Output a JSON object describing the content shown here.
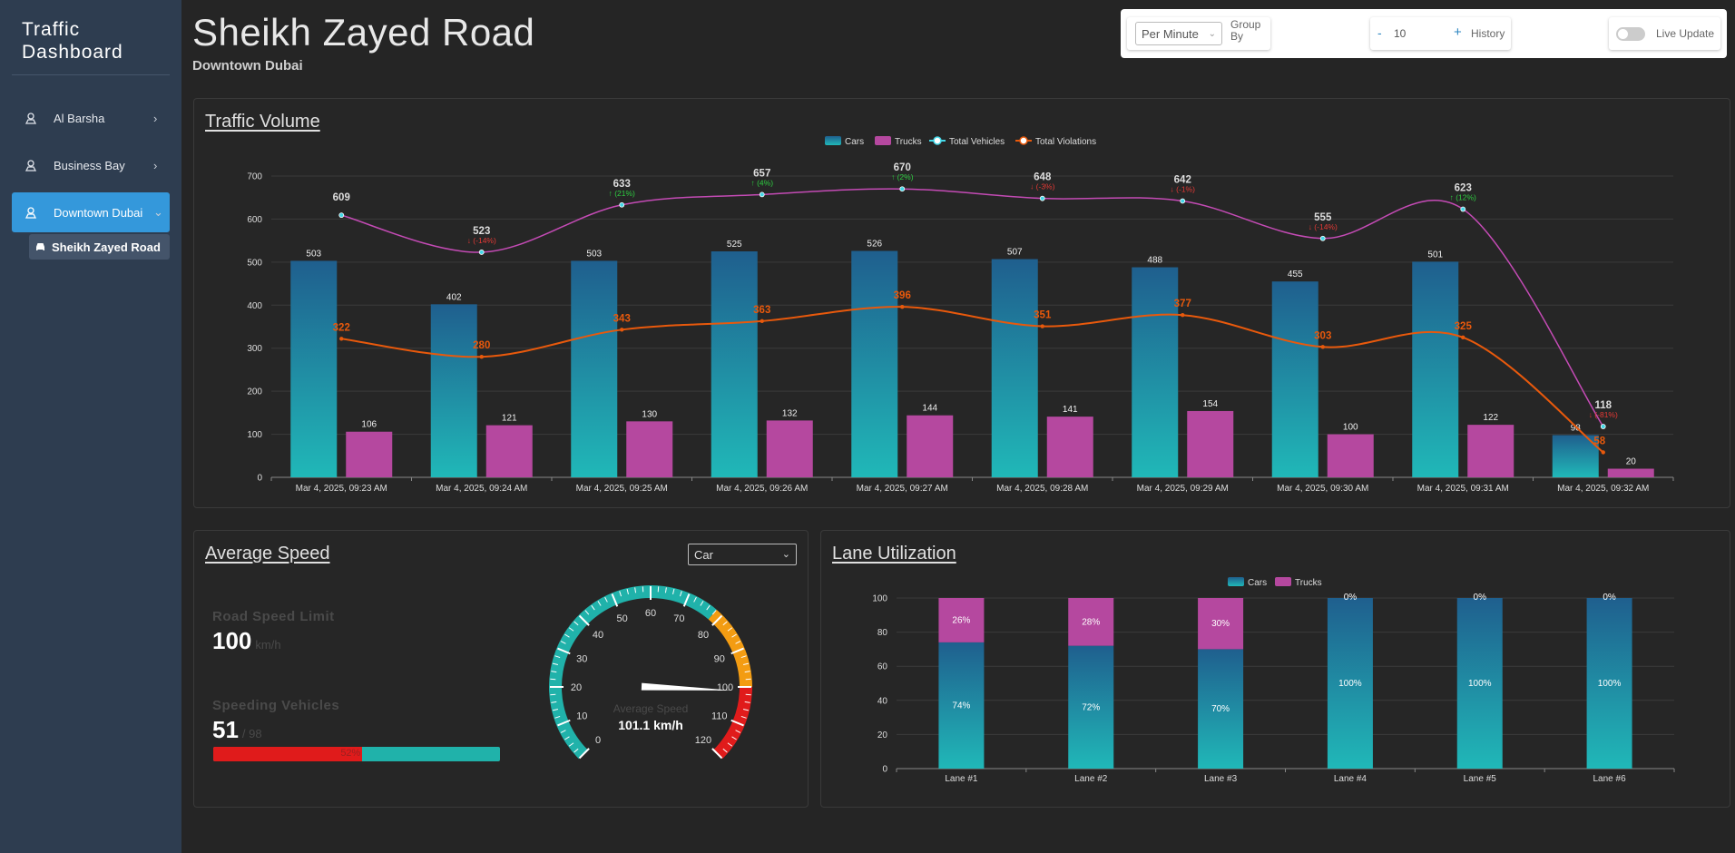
{
  "sidebar": {
    "brand": "Traffic Dashboard",
    "items": [
      {
        "label": "Al Barsha",
        "icon": "map-pin-icon",
        "chevron": "›"
      },
      {
        "label": "Business Bay",
        "icon": "map-pin-icon",
        "chevron": "›"
      },
      {
        "label": "Downtown Dubai",
        "icon": "map-pin-icon",
        "chevron": "⌄"
      }
    ],
    "sub_item": {
      "label": "Sheikh Zayed Road",
      "icon": "car-icon"
    }
  },
  "header": {
    "title": "Sheikh Zayed Road",
    "subtitle": "Downtown Dubai"
  },
  "controls": {
    "group_by_value": "Per Minute",
    "group_by_label": "Group By",
    "history_minus": "-",
    "history_value": "10",
    "history_plus": "+",
    "history_label": "History",
    "live_update_label": "Live Update",
    "live_update_on": false
  },
  "colors": {
    "cars_top": "#1f5f8e",
    "cars_bottom": "#20b8b8",
    "trucks": "#b5489f",
    "total_line": "#c44bb5",
    "violations_line": "#e8590c",
    "up": "#2ecc40",
    "down": "#e53935",
    "accent": "#3498db"
  },
  "traffic_volume": {
    "title": "Traffic Volume",
    "legend": [
      "Cars",
      "Trucks",
      "Total Vehicles",
      "Total Violations"
    ]
  },
  "average_speed": {
    "title": "Average Speed",
    "vehicle_select": "Car",
    "speed_limit_label": "Road Speed Limit",
    "speed_limit_value": "100",
    "speed_limit_unit": "km/h",
    "speeding_label": "Speeding Vehicles",
    "speeding_value": "51",
    "speeding_total": "/ 98",
    "speeding_pct_text": "52%",
    "speeding_fraction": 0.52,
    "gauge_label": "Average Speed",
    "gauge_value_text": "101.1 km/h",
    "gauge_value": 101.1,
    "gauge_min": 0,
    "gauge_max": 120,
    "gauge_ticks": [
      "0",
      "10",
      "20",
      "30",
      "40",
      "50",
      "60",
      "70",
      "80",
      "90",
      "100",
      "110",
      "120"
    ]
  },
  "lane_utilization": {
    "title": "Lane Utilization",
    "legend": [
      "Cars",
      "Trucks"
    ]
  },
  "chart_data": [
    {
      "type": "bar",
      "title": "Traffic Volume",
      "categories": [
        "Mar 4, 2025, 09:23 AM",
        "Mar 4, 2025, 09:24 AM",
        "Mar 4, 2025, 09:25 AM",
        "Mar 4, 2025, 09:26 AM",
        "Mar 4, 2025, 09:27 AM",
        "Mar 4, 2025, 09:28 AM",
        "Mar 4, 2025, 09:29 AM",
        "Mar 4, 2025, 09:30 AM",
        "Mar 4, 2025, 09:31 AM",
        "Mar 4, 2025, 09:32 AM"
      ],
      "yticks": [
        "0",
        "100",
        "200",
        "300",
        "400",
        "500",
        "600",
        "700"
      ],
      "ylim": [
        0,
        700
      ],
      "grid": true,
      "legend_position": "top-center",
      "series": [
        {
          "name": "Cars",
          "kind": "bar",
          "values": [
            503,
            402,
            503,
            525,
            526,
            507,
            488,
            455,
            501,
            98
          ]
        },
        {
          "name": "Trucks",
          "kind": "bar",
          "values": [
            106,
            121,
            130,
            132,
            144,
            141,
            154,
            100,
            122,
            20
          ]
        },
        {
          "name": "Total Vehicles",
          "kind": "line",
          "values": [
            609,
            523,
            633,
            657,
            670,
            648,
            642,
            555,
            623,
            118
          ],
          "change_labels": [
            "",
            "↓ (-14%)",
            "↑ (21%)",
            "↑ (4%)",
            "↑ (2%)",
            "↓ (-3%)",
            "↓ (-1%)",
            "↓ (-14%)",
            "↑ (12%)",
            "↓ (-81%)"
          ],
          "change_dirs": [
            "",
            "down",
            "up",
            "up",
            "up",
            "down",
            "down",
            "down",
            "up",
            "down"
          ]
        },
        {
          "name": "Total Violations",
          "kind": "line",
          "values": [
            322,
            280,
            343,
            363,
            396,
            351,
            377,
            303,
            325,
            58
          ]
        }
      ]
    },
    {
      "type": "bar",
      "stacked": true,
      "title": "Lane Utilization",
      "categories": [
        "Lane #1",
        "Lane #2",
        "Lane #3",
        "Lane #4",
        "Lane #5",
        "Lane #6"
      ],
      "yticks": [
        "0",
        "20",
        "40",
        "60",
        "80",
        "100"
      ],
      "ylim": [
        0,
        100
      ],
      "grid": true,
      "legend_position": "top-center",
      "series": [
        {
          "name": "Cars",
          "values": [
            74,
            72,
            70,
            100,
            100,
            100
          ],
          "labels": [
            "74%",
            "72%",
            "70%",
            "100%",
            "100%",
            "100%"
          ]
        },
        {
          "name": "Trucks",
          "values": [
            26,
            28,
            30,
            0,
            0,
            0
          ],
          "labels": [
            "26%",
            "28%",
            "30%",
            "0%",
            "0%",
            "0%"
          ]
        }
      ]
    }
  ]
}
